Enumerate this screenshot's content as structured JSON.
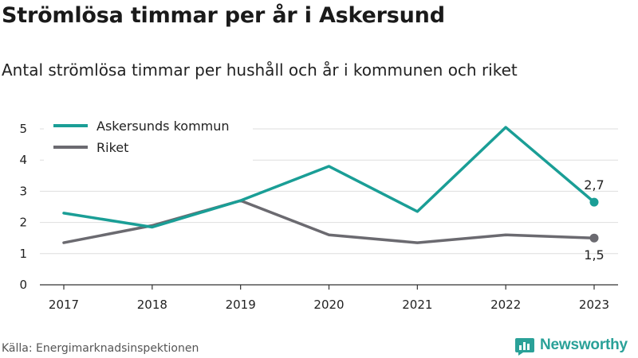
{
  "header": {
    "title": "Strömlösa timmar per år i Askersund",
    "subtitle": "Antal strömlösa timmar per hushåll och år i kommunen och riket"
  },
  "footer": {
    "source": "Källa: Energimarknadsinspektionen",
    "brand": "Newsworthy",
    "brand_icon": "bar-chart-logo-icon"
  },
  "chart_data": {
    "type": "line",
    "title": "",
    "xlabel": "",
    "ylabel": "",
    "x": [
      "2017",
      "2018",
      "2019",
      "2020",
      "2021",
      "2022",
      "2023"
    ],
    "yticks": [
      0,
      1,
      2,
      3,
      4,
      5
    ],
    "ylim": [
      0,
      5.2
    ],
    "grid": true,
    "legend": "top-left",
    "series": [
      {
        "name": "Askersunds kommun",
        "color": "#1a9e96",
        "values": [
          2.3,
          1.85,
          2.7,
          3.8,
          2.35,
          5.05,
          2.65
        ],
        "end_label": "2,7",
        "end_label_position": "above"
      },
      {
        "name": "Riket",
        "color": "#6b6a70",
        "values": [
          1.35,
          1.9,
          2.7,
          1.6,
          1.35,
          1.6,
          1.5
        ],
        "end_label": "1,5",
        "end_label_position": "below"
      }
    ]
  }
}
